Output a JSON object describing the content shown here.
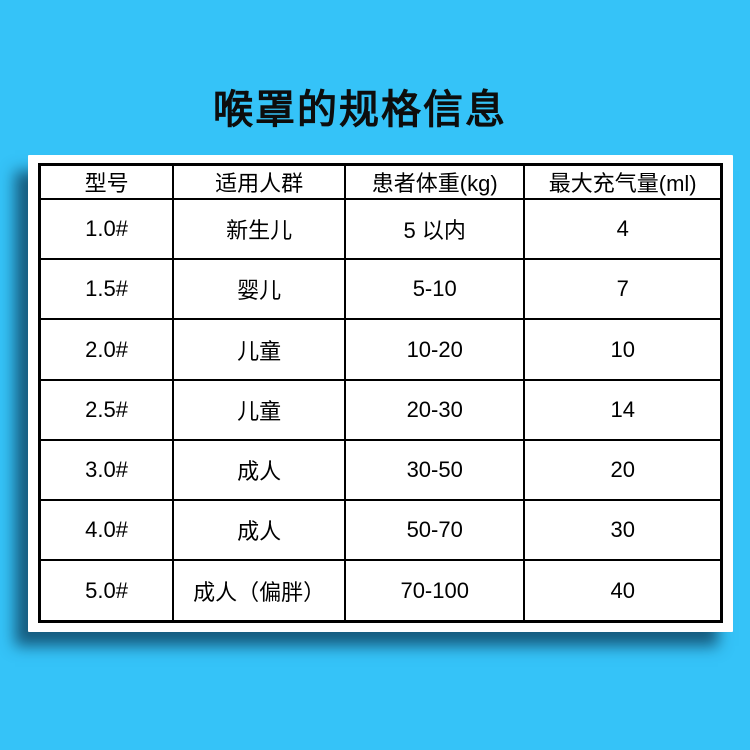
{
  "page": {
    "title": "喉罩的规格信息"
  },
  "colors": {
    "background": "#35C3F8",
    "card": "#FFFFFF",
    "table_border": "#000000",
    "text": "#000000",
    "card_shadow": "#104664"
  },
  "table": {
    "columns": [
      "型号",
      "适用人群",
      "患者体重(kg)",
      "最大充气量(ml)"
    ],
    "rows": [
      [
        "1.0#",
        "新生儿",
        "5 以内",
        "4"
      ],
      [
        "1.5#",
        "婴儿",
        "5-10",
        "7"
      ],
      [
        "2.0#",
        "儿童",
        "10-20",
        "10"
      ],
      [
        "2.5#",
        "儿童",
        "20-30",
        "14"
      ],
      [
        "3.0#",
        "成人",
        "30-50",
        "20"
      ],
      [
        "4.0#",
        "成人",
        "50-70",
        "30"
      ],
      [
        "5.0#",
        "成人（偏胖）",
        "70-100",
        "40"
      ]
    ]
  }
}
